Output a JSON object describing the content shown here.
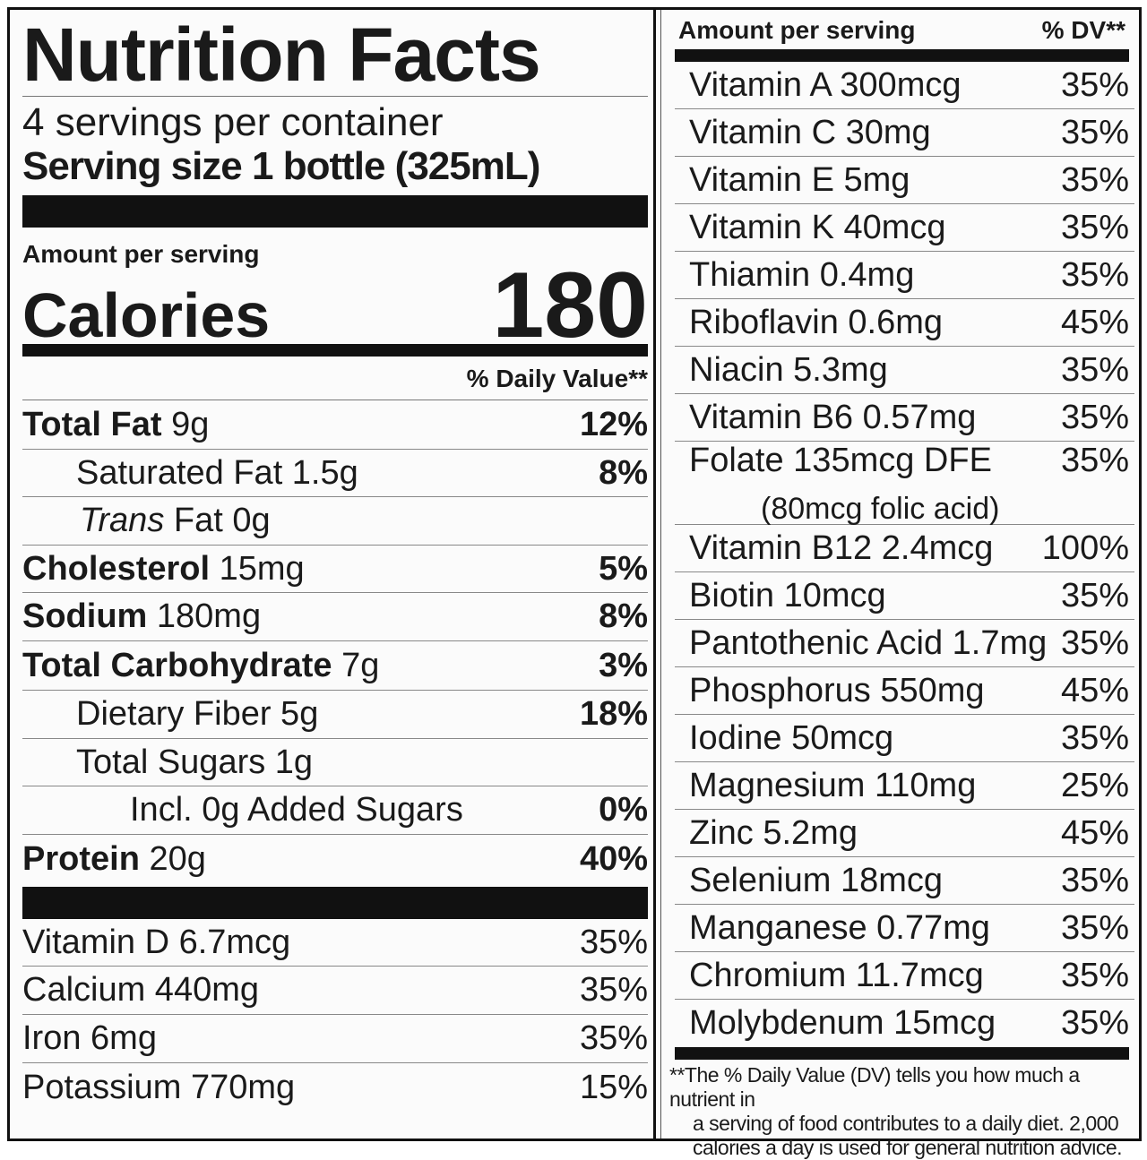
{
  "title": "Nutrition Facts",
  "servings_per_container": "4 servings per container",
  "serving_size": "Serving size 1 bottle (325mL)",
  "amount_per_serving": "Amount per serving",
  "calories": {
    "label": "Calories",
    "value": "180"
  },
  "dv_header": "% Daily Value**",
  "nutrients": [
    {
      "name": "Total Fat",
      "amount": "9g",
      "dv": "12%"
    },
    {
      "name": "Saturated Fat 1.5g",
      "amount": "",
      "dv": "8%"
    },
    {
      "name": "Trans",
      "name2": " Fat 0g",
      "dv": ""
    },
    {
      "name": "Cholesterol",
      "amount": "15mg",
      "dv": "5%"
    },
    {
      "name": "Sodium",
      "amount": "180mg",
      "dv": "8%"
    },
    {
      "name": "Total Carbohydrate",
      "amount": "7g",
      "dv": "3%"
    },
    {
      "name": "Dietary Fiber 5g",
      "dv": "18%"
    },
    {
      "name": "Total Sugars 1g",
      "dv": ""
    },
    {
      "name": "Incl. 0g Added Sugars",
      "dv": "0%"
    },
    {
      "name": "Protein",
      "amount": "20g",
      "dv": "40%"
    }
  ],
  "minerals_left": [
    {
      "label": "Vitamin D 6.7mcg",
      "dv": "35%"
    },
    {
      "label": "Calcium 440mg",
      "dv": "35%"
    },
    {
      "label": "Iron 6mg",
      "dv": "35%"
    },
    {
      "label": "Potassium 770mg",
      "dv": "15%"
    }
  ],
  "right_header": {
    "amount": "Amount per serving",
    "dv": "% DV**"
  },
  "vitamins_right": [
    {
      "label": "Vitamin A 300mcg",
      "dv": "35%"
    },
    {
      "label": "Vitamin C 30mg",
      "dv": "35%"
    },
    {
      "label": "Vitamin E 5mg",
      "dv": "35%"
    },
    {
      "label": "Vitamin K 40mcg",
      "dv": "35%"
    },
    {
      "label": "Thiamin 0.4mg",
      "dv": "35%"
    },
    {
      "label": "Riboflavin 0.6mg",
      "dv": "45%"
    },
    {
      "label": "Niacin 5.3mg",
      "dv": "35%"
    },
    {
      "label": "Vitamin B6 0.57mg",
      "dv": "35%"
    },
    {
      "label": "Folate 135mcg DFE",
      "sub": "(80mcg folic acid)",
      "dv": "35%"
    },
    {
      "label": "Vitamin B12 2.4mcg",
      "dv": "100%"
    },
    {
      "label": "Biotin 10mcg",
      "dv": "35%"
    },
    {
      "label": "Pantothenic Acid 1.7mg",
      "dv": "35%"
    },
    {
      "label": "Phosphorus 550mg",
      "dv": "45%"
    },
    {
      "label": "Iodine 50mcg",
      "dv": "35%"
    },
    {
      "label": "Magnesium 110mg",
      "dv": "25%"
    },
    {
      "label": "Zinc 5.2mg",
      "dv": "45%"
    },
    {
      "label": "Selenium 18mcg",
      "dv": "35%"
    },
    {
      "label": "Manganese 0.77mg",
      "dv": "35%"
    },
    {
      "label": "Chromium 11.7mcg",
      "dv": "35%"
    },
    {
      "label": "Molybdenum 15mcg",
      "dv": "35%"
    }
  ],
  "footnote": {
    "line1": "**The % Daily Value (DV) tells you how much a nutrient in",
    "line2": "a serving of food contributes to a daily diet. 2,000",
    "line3": "calories a day is used for general nutrition advice."
  }
}
